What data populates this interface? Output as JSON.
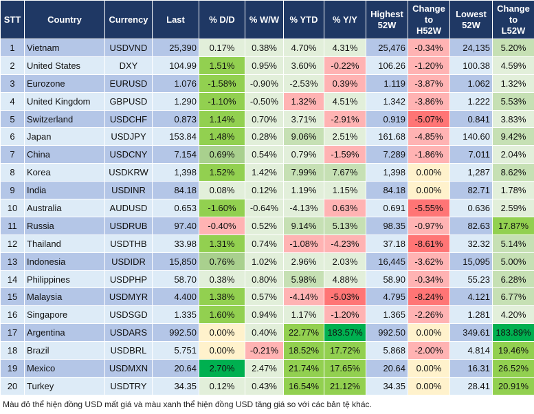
{
  "headers": [
    "STT",
    "Country",
    "Currency",
    "Last",
    "% D/D",
    "% W/W",
    "% YTD",
    "% Y/Y",
    "Highest 52W",
    "Change to H52W",
    "Lowest 52W",
    "Change to L52W"
  ],
  "colors": {
    "L": "#e2efda",
    "M": "#c6e0b4",
    "G": "#92d050",
    "D": "#00b050",
    "A": "#a9d08e",
    "P": "#ffb3b3",
    "R": "#ff7575",
    "Y": "#fff2cc"
  },
  "rows": [
    {
      "stt": "1",
      "country": "Vietnam",
      "currency": "USDVND",
      "last": "25,390",
      "dd": "0.17%",
      "ww": "0.38%",
      "ytd": "4.70%",
      "yy": "4.31%",
      "high": "25,476",
      "ch": "-0.34%",
      "low": "24,135",
      "cl": "5.20%",
      "colors": "LLLLPM"
    },
    {
      "stt": "2",
      "country": "United States",
      "currency": "DXY",
      "last": "104.99",
      "dd": "1.51%",
      "ww": "0.95%",
      "ytd": "3.60%",
      "yy": "-0.22%",
      "high": "106.26",
      "ch": "-1.20%",
      "low": "100.38",
      "cl": "4.59%",
      "colors": "GLLPPL"
    },
    {
      "stt": "3",
      "country": "Eurozone",
      "currency": "EURUSD",
      "last": "1.076",
      "dd": "-1.58%",
      "ww": "-0.90%",
      "ytd": "-2.53%",
      "yy": "0.39%",
      "high": "1.119",
      "ch": "-3.87%",
      "low": "1.062",
      "cl": "1.32%",
      "colors": "GLLPPL"
    },
    {
      "stt": "4",
      "country": "United Kingdom",
      "currency": "GBPUSD",
      "last": "1.290",
      "dd": "-1.10%",
      "ww": "-0.50%",
      "ytd": "1.32%",
      "yy": "4.51%",
      "high": "1.342",
      "ch": "-3.86%",
      "low": "1.222",
      "cl": "5.53%",
      "colors": "GLPLPM"
    },
    {
      "stt": "5",
      "country": "Switzerland",
      "currency": "USDCHF",
      "last": "0.873",
      "dd": "1.14%",
      "ww": "0.70%",
      "ytd": "3.71%",
      "yy": "-2.91%",
      "high": "0.919",
      "ch": "-5.07%",
      "low": "0.841",
      "cl": "3.83%",
      "colors": "GLLPRL"
    },
    {
      "stt": "6",
      "country": "Japan",
      "currency": "USDJPY",
      "last": "153.84",
      "dd": "1.48%",
      "ww": "0.28%",
      "ytd": "9.06%",
      "yy": "2.51%",
      "high": "161.68",
      "ch": "-4.85%",
      "low": "140.60",
      "cl": "9.42%",
      "colors": "GLMLPM"
    },
    {
      "stt": "7",
      "country": "China",
      "currency": "USDCNY",
      "last": "7.154",
      "dd": "0.69%",
      "ww": "0.54%",
      "ytd": "0.79%",
      "yy": "-1.59%",
      "high": "7.289",
      "ch": "-1.86%",
      "low": "7.011",
      "cl": "2.04%",
      "colors": "ALLPPL"
    },
    {
      "stt": "8",
      "country": "Korea",
      "currency": "USDKRW",
      "last": "1,398",
      "dd": "1.52%",
      "ww": "1.42%",
      "ytd": "7.99%",
      "yy": "7.67%",
      "high": "1,398",
      "ch": "0.00%",
      "low": "1,287",
      "cl": "8.62%",
      "colors": "GLMMYM"
    },
    {
      "stt": "9",
      "country": "India",
      "currency": "USDINR",
      "last": "84.18",
      "dd": "0.08%",
      "ww": "0.12%",
      "ytd": "1.19%",
      "yy": "1.15%",
      "high": "84.18",
      "ch": "0.00%",
      "low": "82.71",
      "cl": "1.78%",
      "colors": "LLLLYL"
    },
    {
      "stt": "10",
      "country": "Australia",
      "currency": "AUDUSD",
      "last": "0.653",
      "dd": "-1.60%",
      "ww": "-0.64%",
      "ytd": "-4.13%",
      "yy": "0.63%",
      "high": "0.691",
      "ch": "-5.55%",
      "low": "0.636",
      "cl": "2.59%",
      "colors": "GLLPRL"
    },
    {
      "stt": "11",
      "country": "Russia",
      "currency": "USDRUB",
      "last": "97.40",
      "dd": "-0.40%",
      "ww": "0.52%",
      "ytd": "9.14%",
      "yy": "5.13%",
      "high": "98.35",
      "ch": "-0.97%",
      "low": "82.63",
      "cl": "17.87%",
      "colors": "PLMMPG"
    },
    {
      "stt": "12",
      "country": "Thailand",
      "currency": "USDTHB",
      "last": "33.98",
      "dd": "1.31%",
      "ww": "0.74%",
      "ytd": "-1.08%",
      "yy": "-4.23%",
      "high": "37.18",
      "ch": "-8.61%",
      "low": "32.32",
      "cl": "5.14%",
      "colors": "GLPPRM"
    },
    {
      "stt": "13",
      "country": "Indonesia",
      "currency": "USDIDR",
      "last": "15,850",
      "dd": "0.76%",
      "ww": "1.02%",
      "ytd": "2.96%",
      "yy": "2.03%",
      "high": "16,445",
      "ch": "-3.62%",
      "low": "15,095",
      "cl": "5.00%",
      "colors": "ALLLPM"
    },
    {
      "stt": "14",
      "country": "Philippines",
      "currency": "USDPHP",
      "last": "58.70",
      "dd": "0.38%",
      "ww": "0.80%",
      "ytd": "5.98%",
      "yy": "4.88%",
      "high": "58.90",
      "ch": "-0.34%",
      "low": "55.23",
      "cl": "6.28%",
      "colors": "LLMLPM"
    },
    {
      "stt": "15",
      "country": "Malaysia",
      "currency": "USDMYR",
      "last": "4.400",
      "dd": "1.38%",
      "ww": "0.57%",
      "ytd": "-4.14%",
      "yy": "-5.03%",
      "high": "4.795",
      "ch": "-8.24%",
      "low": "4.121",
      "cl": "6.77%",
      "colors": "GLPRRM"
    },
    {
      "stt": "16",
      "country": "Singapore",
      "currency": "USDSGD",
      "last": "1.335",
      "dd": "1.60%",
      "ww": "0.94%",
      "ytd": "1.17%",
      "yy": "-1.20%",
      "high": "1.365",
      "ch": "-2.26%",
      "low": "1.281",
      "cl": "4.20%",
      "colors": "GLLPPL"
    },
    {
      "stt": "17",
      "country": "Argentina",
      "currency": "USDARS",
      "last": "992.50",
      "dd": "0.00%",
      "ww": "0.40%",
      "ytd": "22.77%",
      "yy": "183.57%",
      "high": "992.50",
      "ch": "0.00%",
      "low": "349.61",
      "cl": "183.89%",
      "colors": "YLGDYD"
    },
    {
      "stt": "18",
      "country": "Brazil",
      "currency": "USDBRL",
      "last": "5.751",
      "dd": "0.00%",
      "ww": "-0.21%",
      "ytd": "18.52%",
      "yy": "17.72%",
      "high": "5.868",
      "ch": "-2.00%",
      "low": "4.814",
      "cl": "19.46%",
      "colors": "YPGGPG"
    },
    {
      "stt": "19",
      "country": "Mexico",
      "currency": "USDMXN",
      "last": "20.64",
      "dd": "2.70%",
      "ww": "2.47%",
      "ytd": "21.74%",
      "yy": "17.65%",
      "high": "20.64",
      "ch": "0.00%",
      "low": "16.31",
      "cl": "26.52%",
      "colors": "DLGGYG"
    },
    {
      "stt": "20",
      "country": "Turkey",
      "currency": "USDTRY",
      "last": "34.35",
      "dd": "0.12%",
      "ww": "0.43%",
      "ytd": "16.54%",
      "yy": "21.12%",
      "high": "34.35",
      "ch": "0.00%",
      "low": "28.41",
      "cl": "20.91%",
      "colors": "LLGGYG"
    }
  ],
  "footnote": "Màu đỏ thể hiện đồng USD mất giá và màu xanh thể hiện đồng USD tăng giá so với các bản tệ khác."
}
